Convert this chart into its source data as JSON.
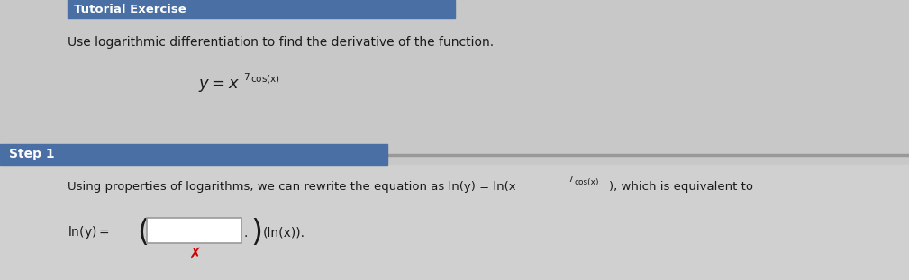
{
  "bg_color": "#c8c8c8",
  "header_bg": "#4a6fa5",
  "header_text": "Tutorial Exercise",
  "header_text_color": "#ffffff",
  "header_font_size": 9.5,
  "instruction_text": "Use logarithmic differentiation to find the derivative of the function.",
  "instruction_font_size": 10,
  "step_label": "Step 1",
  "step_bg": "#4a6fa5",
  "step_text_color": "#ffffff",
  "step_font_size": 10,
  "body_font_size": 9.5,
  "eq_font_size": 10,
  "text_color": "#1a1a1a",
  "eq_box_color": "#ffffff",
  "eq_box_border": "#999999",
  "eq_x_color": "#cc0000",
  "line_color": "#999999",
  "lower_bg": "#d4d4d4"
}
